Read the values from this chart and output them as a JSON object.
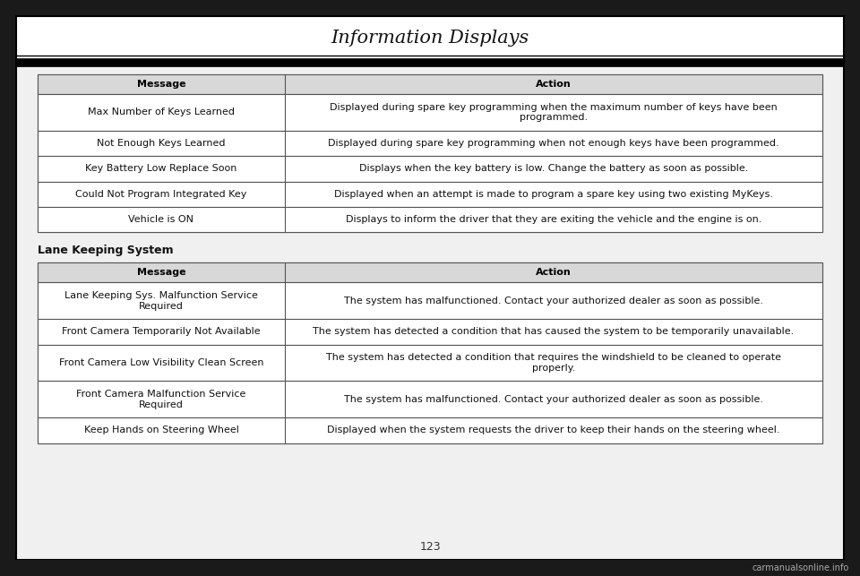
{
  "title": "Information Displays",
  "page_number": "123",
  "watermark": "carmanualsonline.info",
  "bg_color": "#1a1a1a",
  "page_bg": "#ffffff",
  "table_border_color": "#555555",
  "header_bg": "#d8d8d8",
  "table1": {
    "headers": [
      "Message",
      "Action"
    ],
    "rows": [
      [
        "Max Number of Keys Learned",
        "Displayed during spare key programming when the maximum number of keys have been\nprogrammed."
      ],
      [
        "Not Enough Keys Learned",
        "Displayed during spare key programming when not enough keys have been programmed."
      ],
      [
        "Key Battery Low Replace Soon",
        "Displays when the key battery is low. Change the battery as soon as possible."
      ],
      [
        "Could Not Program Integrated Key",
        "Displayed when an attempt is made to program a spare key using two existing MyKeys."
      ],
      [
        "Vehicle is ON",
        "Displays to inform the driver that they are exiting the vehicle and the engine is on."
      ]
    ]
  },
  "section2_title": "Lane Keeping System",
  "table2": {
    "headers": [
      "Message",
      "Action"
    ],
    "rows": [
      [
        "Lane Keeping Sys. Malfunction Service\nRequired",
        "The system has malfunctioned. Contact your authorized dealer as soon as possible."
      ],
      [
        "Front Camera Temporarily Not Available",
        "The system has detected a condition that has caused the system to be temporarily unavailable."
      ],
      [
        "Front Camera Low Visibility Clean Screen",
        "The system has detected a condition that requires the windshield to be cleaned to operate\nproperly."
      ],
      [
        "Front Camera Malfunction Service\nRequired",
        "The system has malfunctioned. Contact your authorized dealer as soon as possible."
      ],
      [
        "Keep Hands on Steering Wheel",
        "Displayed when the system requests the driver to keep their hands on the steering wheel."
      ]
    ]
  },
  "col_split": 0.315,
  "title_fontsize": 15,
  "header_fontsize": 8,
  "body_fontsize": 8,
  "section_fontsize": 9,
  "page_fontsize": 9
}
